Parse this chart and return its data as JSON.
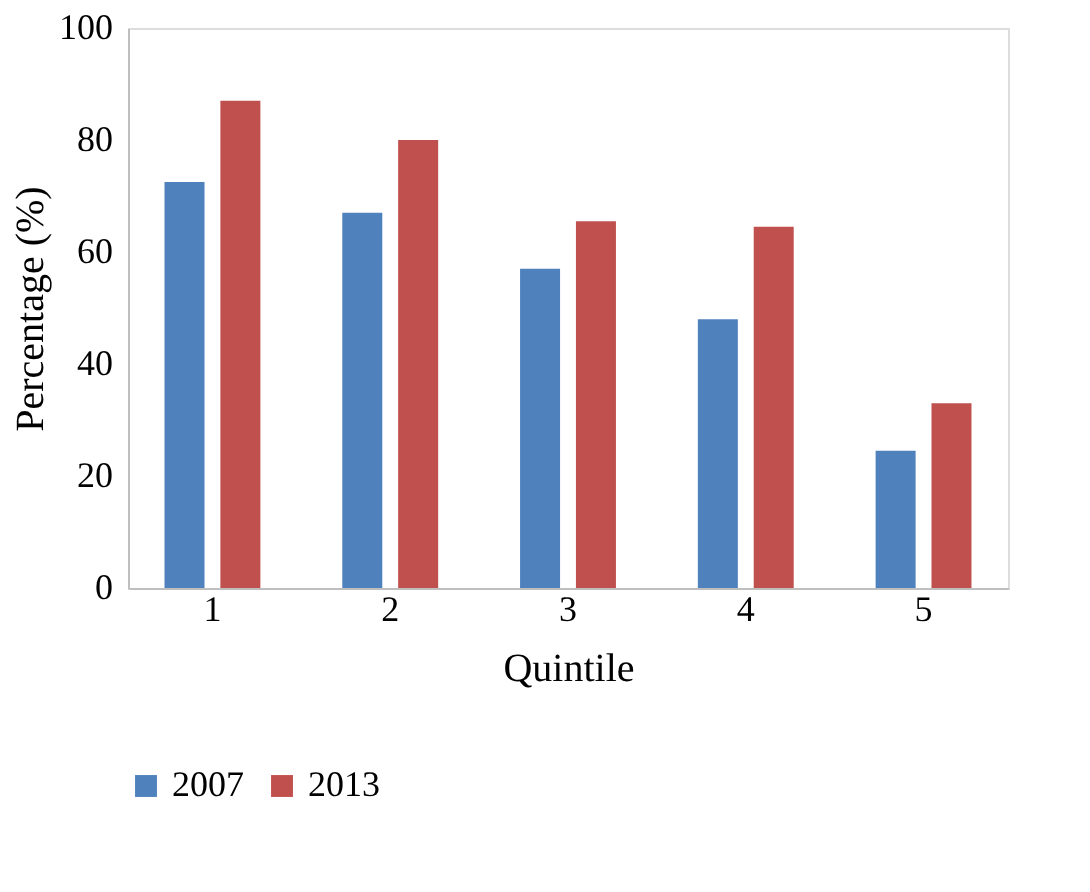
{
  "chart_data": {
    "type": "bar",
    "xlabel": "Quintile",
    "ylabel": "Percentage (%)",
    "categories": [
      "1",
      "2",
      "3",
      "4",
      "5"
    ],
    "series": [
      {
        "name": "2007",
        "color": "#4f81bd",
        "values": [
          72.5,
          67,
          57,
          48,
          24.5
        ]
      },
      {
        "name": "2013",
        "color": "#c0504d",
        "values": [
          87,
          80,
          65.5,
          64.5,
          33
        ]
      }
    ],
    "ylim": [
      0,
      100
    ],
    "yticks": [
      0,
      20,
      40,
      60,
      80,
      100
    ],
    "grid": false,
    "legend": "bottom"
  }
}
